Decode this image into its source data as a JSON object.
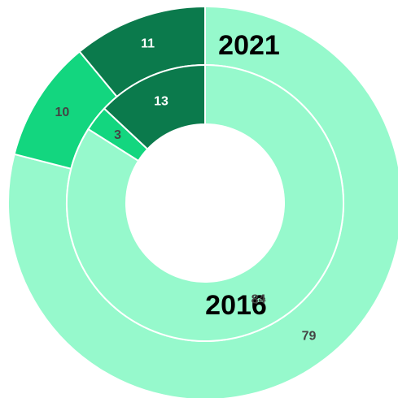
{
  "chart_data": {
    "type": "donut",
    "colors": [
      "#96f9cc",
      "#13d67f",
      "#0b7a4c"
    ],
    "series": [
      {
        "name": "2021",
        "values": [
          79,
          10,
          11
        ]
      },
      {
        "name": "2016",
        "values": [
          84,
          3,
          13
        ]
      }
    ]
  }
}
